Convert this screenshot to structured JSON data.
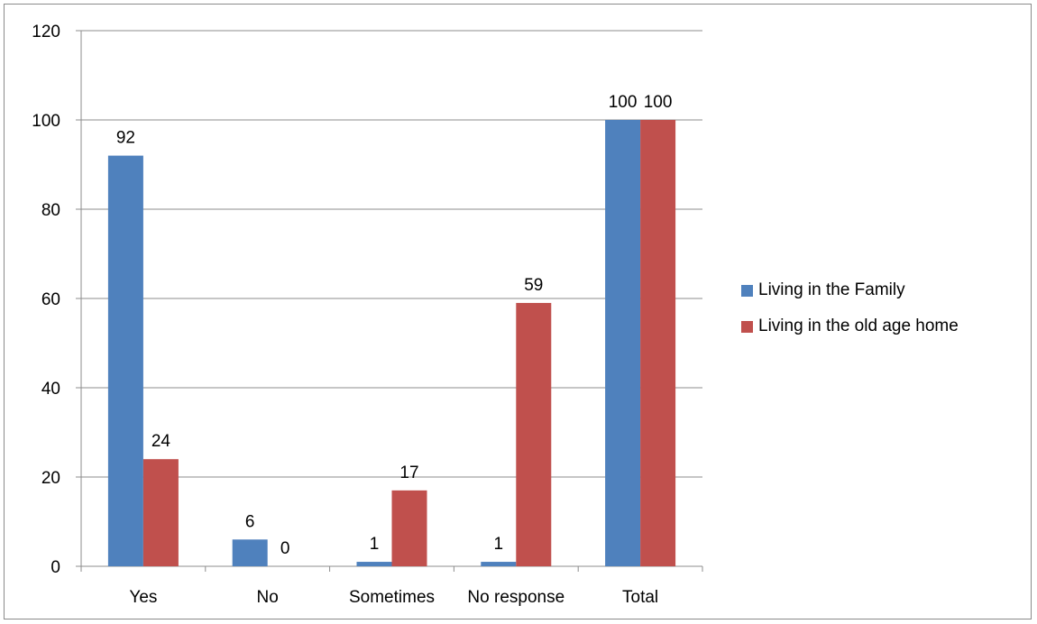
{
  "chart_data": {
    "type": "bar",
    "title": "",
    "xlabel": "",
    "ylabel": "",
    "categories": [
      "Yes",
      "No",
      "Sometimes",
      "No response",
      "Total"
    ],
    "series": [
      {
        "name": "Living in the Family",
        "color": "#4f81bd",
        "values": [
          92,
          6,
          1,
          1,
          100
        ]
      },
      {
        "name": "Living in the old age home",
        "color": "#c0504d",
        "values": [
          24,
          0,
          17,
          59,
          100
        ]
      }
    ],
    "ylim": [
      0,
      120
    ],
    "yticks": [
      0,
      20,
      40,
      60,
      80,
      100,
      120
    ],
    "grid": true,
    "legend_position": "right",
    "data_labels": true
  }
}
